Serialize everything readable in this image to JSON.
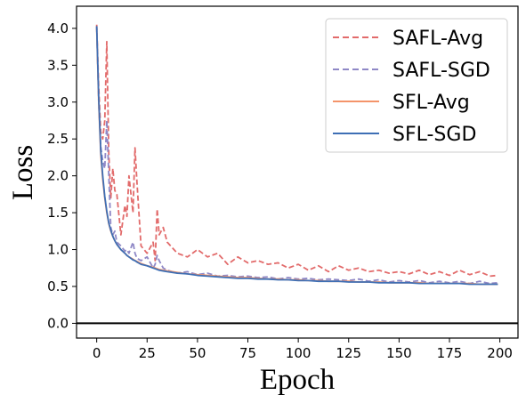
{
  "chart_data": {
    "type": "line",
    "title": "",
    "xlabel": "Epoch",
    "ylabel": "Loss",
    "xlim": [
      -10,
      209
    ],
    "ylim": [
      -0.2,
      4.3
    ],
    "xticks": [
      "0",
      "25",
      "50",
      "75",
      "100",
      "125",
      "150",
      "175",
      "200"
    ],
    "yticks": [
      "0.0",
      "0.5",
      "1.0",
      "1.5",
      "2.0",
      "2.5",
      "3.0",
      "3.5",
      "4.0"
    ],
    "grid": false,
    "reference_line": {
      "y": 0.0,
      "color": "#000000"
    },
    "legend": {
      "placement": "top-right"
    },
    "x": [
      0,
      1,
      2,
      3,
      4,
      5,
      6,
      7,
      8,
      9,
      10,
      12,
      14,
      15,
      16,
      18,
      19,
      20,
      22,
      25,
      28,
      29,
      30,
      31,
      33,
      35,
      40,
      45,
      50,
      55,
      60,
      65,
      70,
      75,
      80,
      85,
      90,
      95,
      100,
      105,
      110,
      115,
      120,
      125,
      130,
      135,
      140,
      145,
      150,
      155,
      160,
      165,
      170,
      175,
      180,
      185,
      190,
      195,
      199
    ],
    "series": [
      {
        "name": "SAFL-Avg",
        "color": "#e26b6b",
        "dash": "dashed",
        "values": [
          4.05,
          3.2,
          2.6,
          2.5,
          2.75,
          3.82,
          2.3,
          1.7,
          2.1,
          1.8,
          1.75,
          1.2,
          1.6,
          1.45,
          2.0,
          1.5,
          2.38,
          1.9,
          1.05,
          0.95,
          1.1,
          0.85,
          1.55,
          1.2,
          1.3,
          1.1,
          0.95,
          0.9,
          1.0,
          0.9,
          0.95,
          0.8,
          0.9,
          0.82,
          0.85,
          0.8,
          0.82,
          0.75,
          0.8,
          0.72,
          0.78,
          0.7,
          0.78,
          0.72,
          0.75,
          0.7,
          0.72,
          0.68,
          0.7,
          0.67,
          0.72,
          0.66,
          0.7,
          0.65,
          0.72,
          0.66,
          0.7,
          0.64,
          0.65
        ]
      },
      {
        "name": "SAFL-SGD",
        "color": "#8f88c6",
        "dash": "dashed",
        "values": [
          4.02,
          3.0,
          2.4,
          2.2,
          2.1,
          2.75,
          2.0,
          1.3,
          1.2,
          1.25,
          1.1,
          1.05,
          0.98,
          1.0,
          0.95,
          1.1,
          0.95,
          0.88,
          0.85,
          0.9,
          0.75,
          0.8,
          0.92,
          0.85,
          0.75,
          0.72,
          0.68,
          0.7,
          0.66,
          0.68,
          0.64,
          0.65,
          0.63,
          0.64,
          0.62,
          0.63,
          0.6,
          0.62,
          0.6,
          0.61,
          0.59,
          0.6,
          0.59,
          0.58,
          0.6,
          0.57,
          0.59,
          0.56,
          0.58,
          0.56,
          0.58,
          0.55,
          0.57,
          0.55,
          0.57,
          0.54,
          0.57,
          0.54,
          0.55
        ]
      },
      {
        "name": "SFL-Avg",
        "color": "#f4946a",
        "dash": "solid",
        "values": [
          4.0,
          3.0,
          2.3,
          1.95,
          1.7,
          1.5,
          1.35,
          1.25,
          1.18,
          1.12,
          1.07,
          1.0,
          0.95,
          0.92,
          0.9,
          0.87,
          0.85,
          0.84,
          0.81,
          0.78,
          0.76,
          0.75,
          0.74,
          0.73,
          0.72,
          0.71,
          0.69,
          0.67,
          0.66,
          0.65,
          0.64,
          0.63,
          0.62,
          0.62,
          0.61,
          0.6,
          0.6,
          0.59,
          0.59,
          0.58,
          0.58,
          0.57,
          0.57,
          0.57,
          0.56,
          0.56,
          0.56,
          0.55,
          0.55,
          0.55,
          0.55,
          0.54,
          0.54,
          0.54,
          0.54,
          0.54,
          0.53,
          0.53,
          0.53
        ]
      },
      {
        "name": "SFL-SGD",
        "color": "#3e6fb5",
        "dash": "solid",
        "values": [
          4.03,
          3.05,
          2.35,
          2.0,
          1.72,
          1.52,
          1.36,
          1.26,
          1.18,
          1.12,
          1.07,
          1.0,
          0.95,
          0.92,
          0.9,
          0.86,
          0.85,
          0.83,
          0.8,
          0.78,
          0.75,
          0.74,
          0.73,
          0.72,
          0.71,
          0.7,
          0.68,
          0.67,
          0.65,
          0.64,
          0.63,
          0.62,
          0.61,
          0.61,
          0.6,
          0.6,
          0.59,
          0.59,
          0.58,
          0.58,
          0.57,
          0.57,
          0.57,
          0.56,
          0.56,
          0.56,
          0.55,
          0.55,
          0.55,
          0.55,
          0.54,
          0.54,
          0.54,
          0.54,
          0.54,
          0.53,
          0.53,
          0.53,
          0.53
        ]
      }
    ]
  }
}
